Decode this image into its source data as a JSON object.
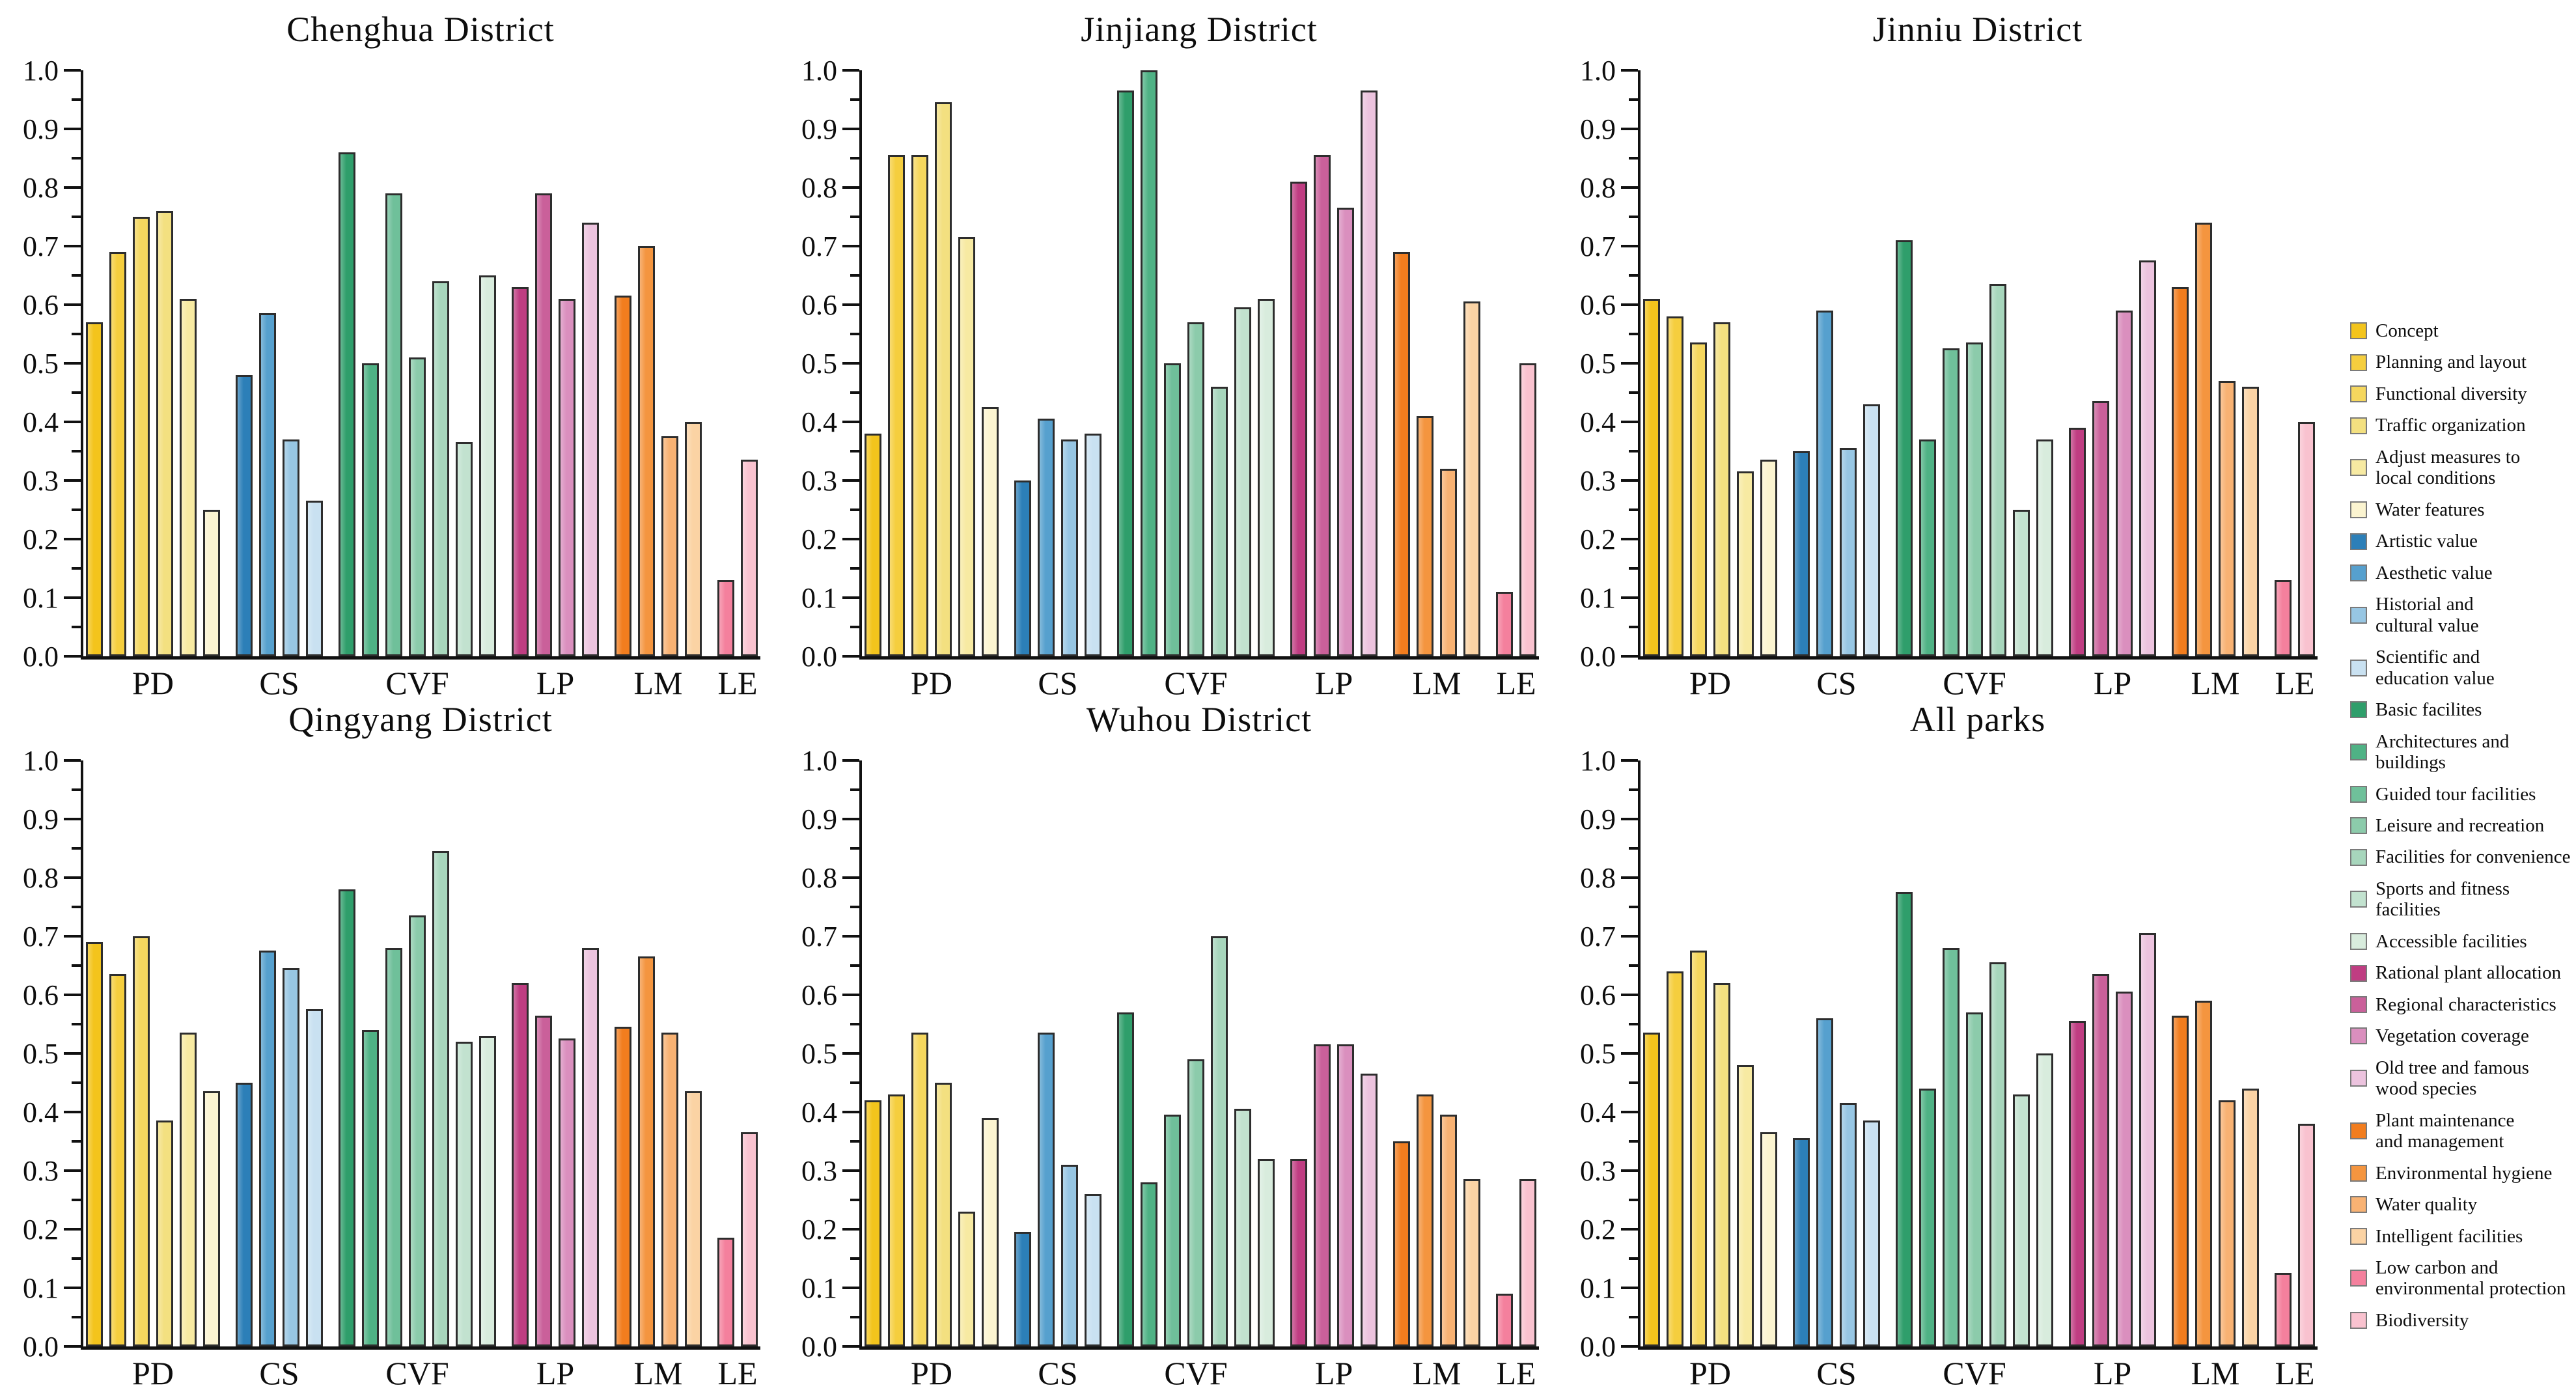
{
  "chart_data": {
    "type": "bar",
    "title": "",
    "xlabel": "",
    "ylabel": "",
    "ylim": [
      0,
      1
    ],
    "grid": false,
    "legend_position": "right",
    "y_tick_labels": [
      "0.0",
      "0.1",
      "0.2",
      "0.3",
      "0.4",
      "0.5",
      "0.6",
      "0.7",
      "0.8",
      "0.9",
      "1.0"
    ],
    "y_minor_step": 0.05,
    "categories": [
      "PD",
      "CS",
      "CVF",
      "LP",
      "LM",
      "LE"
    ],
    "palette": {
      "PD": [
        "#F3C41C",
        "#F5CE3E",
        "#F5D75E",
        "#F3E080",
        "#F7EAA2",
        "#FBF4D0"
      ],
      "CS": [
        "#2C7FB8",
        "#56A0CE",
        "#97C6E3",
        "#C9E1F1"
      ],
      "CVF": [
        "#2F9E6B",
        "#4FB285",
        "#6FC09A",
        "#8CCBAB",
        "#A7D6BC",
        "#C2E2CF",
        "#D8ECDD"
      ],
      "LP": [
        "#BF3D82",
        "#CA609A",
        "#DA8FBE",
        "#ECC3DE"
      ],
      "LM": [
        "#F27D1E",
        "#F4953F",
        "#F8B273",
        "#FBD3A4"
      ],
      "LE": [
        "#F4809D",
        "#F9C2CF"
      ]
    },
    "legend": [
      {
        "label": "Concept",
        "color": "#F3C41C"
      },
      {
        "label": "Planning and layout",
        "color": "#F5CE3E"
      },
      {
        "label": "Functional diversity",
        "color": "#F5D75E"
      },
      {
        "label": "Traffic organization",
        "color": "#F3E080"
      },
      {
        "label": "Adjust measures to\nlocal conditions",
        "color": "#F7EAA2"
      },
      {
        "label": "Water features",
        "color": "#FBF4D0"
      },
      {
        "label": "Artistic value",
        "color": "#2C7FB8"
      },
      {
        "label": "Aesthetic value",
        "color": "#56A0CE"
      },
      {
        "label": "Historial and\ncultural value",
        "color": "#97C6E3"
      },
      {
        "label": "Scientific and\neducation value",
        "color": "#C9E1F1"
      },
      {
        "label": "Basic facilites",
        "color": "#2F9E6B"
      },
      {
        "label": "Architectures and\nbuildings",
        "color": "#4FB285"
      },
      {
        "label": "Guided tour facilities",
        "color": "#6FC09A"
      },
      {
        "label": "Leisure and recreation",
        "color": "#8CCBAB"
      },
      {
        "label": "Facilities for convenience",
        "color": "#A7D6BC"
      },
      {
        "label": "Sports and fitness facilities",
        "color": "#C2E2CF"
      },
      {
        "label": "Accessible facilities",
        "color": "#D8ECDD"
      },
      {
        "label": "Rational plant allocation",
        "color": "#BF3D82"
      },
      {
        "label": "Regional characteristics",
        "color": "#CA609A"
      },
      {
        "label": "Vegetation coverage",
        "color": "#DA8FBE"
      },
      {
        "label": "Old tree and famous wood species",
        "color": "#ECC3DE"
      },
      {
        "label": "Plant maintenance\nand management",
        "color": "#F27D1E"
      },
      {
        "label": "Environmental hygiene",
        "color": "#F4953F"
      },
      {
        "label": "Water quality",
        "color": "#F8B273"
      },
      {
        "label": "Intelligent facilities",
        "color": "#FBD3A4"
      },
      {
        "label": "Low carbon and\nenvironmental protection",
        "color": "#F4809D"
      },
      {
        "label": "Biodiversity",
        "color": "#F9C2CF"
      }
    ],
    "charts": [
      {
        "title": "Chenghua District",
        "values": {
          "PD": [
            0.57,
            0.69,
            0.75,
            0.76,
            0.61,
            0.25
          ],
          "CS": [
            0.48,
            0.585,
            0.37,
            0.265
          ],
          "CVF": [
            0.86,
            0.5,
            0.79,
            0.51,
            0.64,
            0.365,
            0.65
          ],
          "LP": [
            0.63,
            0.79,
            0.61,
            0.74
          ],
          "LM": [
            0.615,
            0.7,
            0.375,
            0.4
          ],
          "LE": [
            0.13,
            0.335
          ]
        }
      },
      {
        "title": "Jinjiang District",
        "values": {
          "PD": [
            0.38,
            0.855,
            0.855,
            0.945,
            0.715,
            0.425
          ],
          "CS": [
            0.3,
            0.405,
            0.37,
            0.38
          ],
          "CVF": [
            0.965,
            1.0,
            0.5,
            0.57,
            0.46,
            0.595,
            0.61
          ],
          "LP": [
            0.81,
            0.855,
            0.765,
            0.965
          ],
          "LM": [
            0.69,
            0.41,
            0.32,
            0.605
          ],
          "LE": [
            0.11,
            0.5
          ]
        }
      },
      {
        "title": "Jinniu District",
        "values": {
          "PD": [
            0.61,
            0.58,
            0.535,
            0.57,
            0.315,
            0.335
          ],
          "CS": [
            0.35,
            0.59,
            0.355,
            0.43
          ],
          "CVF": [
            0.71,
            0.37,
            0.525,
            0.535,
            0.635,
            0.25,
            0.37
          ],
          "LP": [
            0.39,
            0.435,
            0.59,
            0.675
          ],
          "LM": [
            0.63,
            0.74,
            0.47,
            0.46
          ],
          "LE": [
            0.13,
            0.4
          ]
        }
      },
      {
        "title": "Qingyang District",
        "values": {
          "PD": [
            0.69,
            0.635,
            0.7,
            0.385,
            0.535,
            0.435
          ],
          "CS": [
            0.45,
            0.675,
            0.645,
            0.575
          ],
          "CVF": [
            0.78,
            0.54,
            0.68,
            0.735,
            0.845,
            0.52,
            0.53
          ],
          "LP": [
            0.62,
            0.565,
            0.525,
            0.68
          ],
          "LM": [
            0.545,
            0.665,
            0.535,
            0.435
          ],
          "LE": [
            0.185,
            0.365
          ]
        }
      },
      {
        "title": "Wuhou District",
        "values": {
          "PD": [
            0.42,
            0.43,
            0.535,
            0.45,
            0.23,
            0.39
          ],
          "CS": [
            0.195,
            0.535,
            0.31,
            0.26
          ],
          "CVF": [
            0.57,
            0.28,
            0.395,
            0.49,
            0.7,
            0.405,
            0.32
          ],
          "LP": [
            0.32,
            0.515,
            0.515,
            0.465
          ],
          "LM": [
            0.35,
            0.43,
            0.395,
            0.285
          ],
          "LE": [
            0.09,
            0.285
          ]
        }
      },
      {
        "title": "All parks",
        "values": {
          "PD": [
            0.535,
            0.64,
            0.675,
            0.62,
            0.48,
            0.365
          ],
          "CS": [
            0.355,
            0.56,
            0.415,
            0.385
          ],
          "CVF": [
            0.775,
            0.44,
            0.68,
            0.57,
            0.655,
            0.43,
            0.5
          ],
          "LP": [
            0.555,
            0.635,
            0.605,
            0.705
          ],
          "LM": [
            0.565,
            0.59,
            0.42,
            0.44
          ],
          "LE": [
            0.125,
            0.38
          ]
        }
      }
    ]
  }
}
